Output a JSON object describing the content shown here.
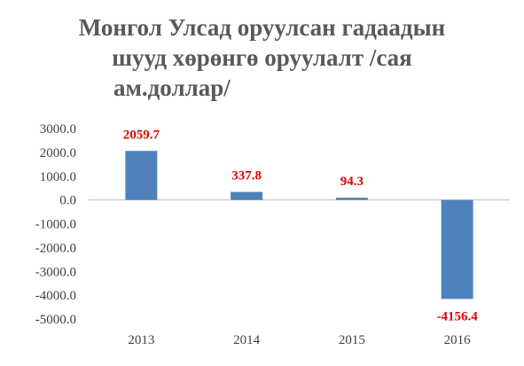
{
  "chart_data": {
    "type": "bar",
    "title_lines": [
      "Монгол Улсад оруулсан гадаадын",
      "шууд хөрөнгө оруулалт /сая",
      "ам.доллар/"
    ],
    "categories": [
      "2013",
      "2014",
      "2015",
      "2016"
    ],
    "values": [
      2059.7,
      337.8,
      94.3,
      -4156.4
    ],
    "data_labels": [
      "2059.7",
      "337.8",
      "94.3",
      "-4156.4"
    ],
    "y_ticks": [
      3000,
      2000,
      1000,
      0,
      -1000,
      -2000,
      -3000,
      -4000,
      -5000
    ],
    "y_tick_labels": [
      "3000.0",
      "2000.0",
      "1000.0",
      "0.0",
      "-1000.0",
      "-2000.0",
      "-3000.0",
      "-4000.0",
      "-5000.0"
    ],
    "ylim": [
      -5000,
      3000
    ],
    "grid": false,
    "legend": "none",
    "bar_color": "#4f81bd",
    "label_color": "#e00000"
  }
}
